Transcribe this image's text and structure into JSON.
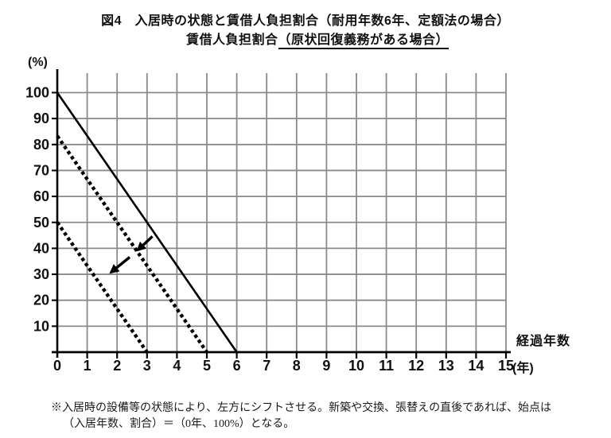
{
  "title": {
    "line1": "図4　入居時の状態と賃借人負担割合（耐用年数6年、定額法の場合）",
    "line2_plain": "賃借人負担割合",
    "line2_underlined": "（原状回復義務がある場合）"
  },
  "chart_data": {
    "type": "line",
    "title": "賃借人負担割合（原状回復義務がある場合）",
    "x_axis": {
      "label": "経過年数",
      "unit": "(年)",
      "range": [
        0,
        15
      ],
      "ticks": [
        0,
        1,
        2,
        3,
        4,
        5,
        6,
        7,
        8,
        9,
        10,
        11,
        12,
        13,
        14,
        15
      ]
    },
    "y_axis": {
      "unit": "(%)",
      "range": [
        0,
        100
      ],
      "ticks": [
        100,
        90,
        80,
        70,
        60,
        50,
        40,
        30,
        20,
        10
      ]
    },
    "grid": true,
    "series": [
      {
        "style": "solid",
        "points": [
          [
            0,
            100
          ],
          [
            6,
            0
          ]
        ]
      },
      {
        "style": "dashed",
        "points": [
          [
            0,
            83.3
          ],
          [
            5,
            0
          ]
        ]
      },
      {
        "style": "dashed",
        "points": [
          [
            0,
            50
          ],
          [
            3,
            0
          ]
        ]
      }
    ],
    "arrows": [
      {
        "from": [
          3.18,
          44.6
        ],
        "to": [
          2.7,
          39.4
        ]
      },
      {
        "from": [
          2.42,
          36.6
        ],
        "to": [
          1.8,
          30.8
        ]
      }
    ]
  },
  "footnote": {
    "line1": "※入居時の設備等の状態により、左方にシフトさせる。新築や交換、張替えの直後であれば、始点は",
    "line2": "（入居年数、割合）＝（0年、100%）となる。"
  },
  "colors": {
    "line": "#000000",
    "grid": "#8a8a8a",
    "text": "#111111",
    "background": "#ffffff"
  }
}
